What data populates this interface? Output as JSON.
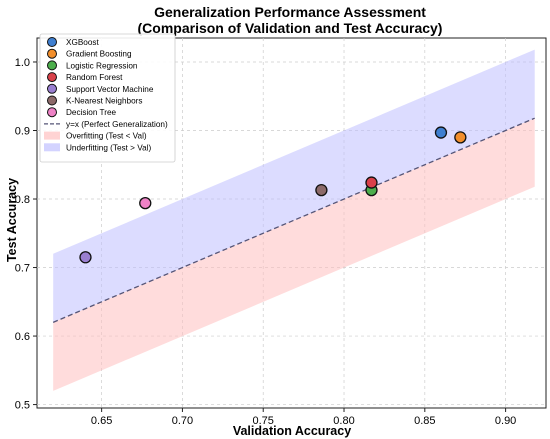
{
  "chart_data": {
    "type": "scatter",
    "title": "Generalization Performance Assessment",
    "subtitle": "(Comparison of Validation and Test Accuracy)",
    "xlabel": "Validation Accuracy",
    "ylabel": "Test Accuracy",
    "xlim": [
      0.61,
      0.925
    ],
    "ylim": [
      0.495,
      1.035
    ],
    "xticks": [
      "0.65",
      "0.70",
      "0.75",
      "0.80",
      "0.85",
      "0.90"
    ],
    "xtick_values": [
      0.65,
      0.7,
      0.75,
      0.8,
      0.85,
      0.9
    ],
    "yticks": [
      "0.5",
      "0.6",
      "0.7",
      "0.8",
      "0.9",
      "1.0"
    ],
    "ytick_values": [
      0.5,
      0.6,
      0.7,
      0.8,
      0.9,
      1.0
    ],
    "grid": true,
    "legend_position": "top-left",
    "series": [
      {
        "name": "XGBoost",
        "x": 0.86,
        "y": 0.897,
        "color": "#3f7fd0"
      },
      {
        "name": "Gradient Boosting",
        "x": 0.872,
        "y": 0.89,
        "color": "#f28e2b"
      },
      {
        "name": "Logistic Regression",
        "x": 0.817,
        "y": 0.813,
        "color": "#4cae4c"
      },
      {
        "name": "Random Forest",
        "x": 0.817,
        "y": 0.824,
        "color": "#d9414a"
      },
      {
        "name": "Support Vector Machine",
        "x": 0.64,
        "y": 0.715,
        "color": "#9a7fd1"
      },
      {
        "name": "K-Nearest Neighbors",
        "x": 0.786,
        "y": 0.813,
        "color": "#8c6a6a"
      },
      {
        "name": "Decision Tree",
        "x": 0.677,
        "y": 0.794,
        "color": "#ee82c6"
      }
    ],
    "reference_line": {
      "name": "y=x (Perfect Generalization)",
      "x_range": [
        0.62,
        0.918
      ],
      "color": "#555577"
    },
    "bands": [
      {
        "name": "Overfitting (Test < Val)",
        "color": "#ffc0c0",
        "offset": -0.1
      },
      {
        "name": "Underfitting (Test > Val)",
        "color": "#c0c0ff",
        "offset": 0.1
      }
    ]
  }
}
